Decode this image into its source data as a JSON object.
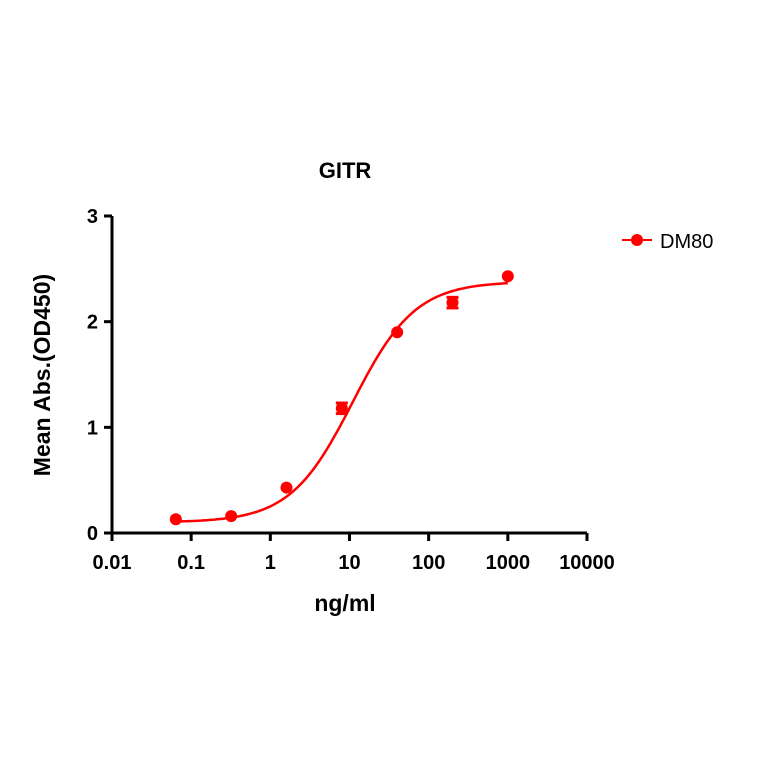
{
  "chart_data": {
    "type": "scatter",
    "title": "GITR",
    "xlabel": "ng/ml",
    "ylabel": "Mean Abs.(OD450)",
    "x_scale": "log",
    "xlim": [
      0.01,
      10000
    ],
    "ylim": [
      0,
      3
    ],
    "x_ticks": [
      "0.01",
      "0.1",
      "1",
      "10",
      "100",
      "1000",
      "10000"
    ],
    "y_ticks": [
      "0",
      "1",
      "2",
      "3"
    ],
    "grid": false,
    "legend_position": "top-right",
    "series": [
      {
        "name": "DM80",
        "color": "#ff0000",
        "marker": "circle",
        "fit": "sigmoidal curve",
        "x": [
          0.064,
          0.32,
          1.6,
          8,
          40,
          200,
          1000
        ],
        "y": [
          0.13,
          0.16,
          0.43,
          1.18,
          1.9,
          2.18,
          2.43
        ],
        "error": [
          0,
          0,
          0,
          0.05,
          0,
          0.05,
          0
        ]
      }
    ]
  }
}
